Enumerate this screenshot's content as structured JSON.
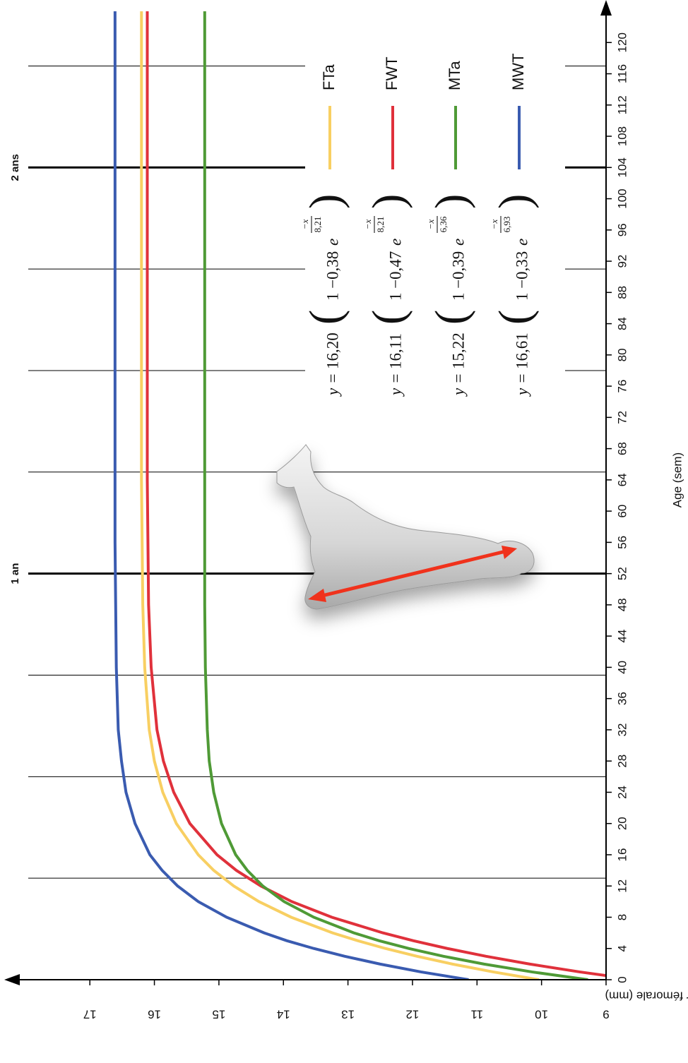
{
  "chart_data": {
    "type": "line",
    "x_label": "Age (sem)",
    "y_label": "Longueur fémorale (mm)",
    "x": [
      0,
      1,
      2,
      3,
      4,
      5,
      6,
      8,
      10,
      12,
      14,
      16,
      20,
      24,
      28,
      32,
      40,
      48,
      56,
      64,
      80,
      96,
      124
    ],
    "xlim": [
      0,
      124
    ],
    "xticks": [
      0,
      4,
      8,
      12,
      16,
      20,
      24,
      28,
      32,
      36,
      40,
      44,
      48,
      52,
      56,
      60,
      64,
      68,
      72,
      76,
      80,
      84,
      88,
      92,
      96,
      100,
      104,
      108,
      112,
      116,
      120
    ],
    "ylim": [
      9,
      17.9
    ],
    "yticks": [
      9,
      10,
      11,
      12,
      13,
      14,
      15,
      16,
      17
    ],
    "grid": false,
    "equation_symbols": {
      "lhs": "y =",
      "one": "1 −",
      "base": "e",
      "exp_num": "−x"
    },
    "series": [
      {
        "name": "FTa",
        "color": "#f8cf62",
        "equation": {
          "a": "16,20",
          "b": "0,38",
          "c": "8,21"
        },
        "values": [
          10.04,
          10.75,
          11.38,
          11.93,
          12.42,
          12.85,
          13.24,
          13.88,
          14.38,
          14.77,
          15.08,
          15.32,
          15.66,
          15.87,
          16.0,
          16.08,
          16.15,
          16.18,
          16.19,
          16.2,
          16.2,
          16.2,
          16.2
        ]
      },
      {
        "name": "FWT",
        "color": "#e0313b",
        "equation": {
          "a": "16,11",
          "b": "0,47",
          "c": "8,21"
        },
        "values": [
          8.54,
          9.41,
          10.18,
          10.86,
          11.46,
          11.99,
          12.46,
          13.25,
          13.87,
          14.35,
          14.73,
          15.03,
          15.45,
          15.7,
          15.86,
          15.96,
          16.05,
          16.09,
          16.1,
          16.11,
          16.11,
          16.11,
          16.11
        ]
      },
      {
        "name": "MTa",
        "color": "#4f9a36",
        "equation": {
          "a": "15,22",
          "b": "0,39",
          "c": "6,36"
        },
        "values": [
          9.28,
          10.15,
          10.89,
          11.52,
          12.06,
          12.52,
          12.91,
          13.53,
          13.99,
          14.32,
          14.56,
          14.74,
          14.96,
          15.08,
          15.15,
          15.18,
          15.21,
          15.22,
          15.22,
          15.22,
          15.22,
          15.22,
          15.22
        ]
      },
      {
        "name": "MWT",
        "color": "#3a5bb0",
        "equation": {
          "a": "16,61",
          "b": "0,33",
          "c": "6,93"
        },
        "values": [
          11.13,
          11.87,
          12.5,
          13.05,
          13.53,
          13.95,
          14.3,
          14.88,
          15.32,
          15.64,
          15.88,
          16.07,
          16.3,
          16.44,
          16.51,
          16.56,
          16.59,
          16.6,
          16.61,
          16.61,
          16.61,
          16.61,
          16.61
        ]
      }
    ],
    "reference_lines": [
      {
        "x": 52,
        "label": "1 an"
      },
      {
        "x": 104,
        "label": "2 ans"
      }
    ],
    "quarter_lines": [
      13,
      26,
      39,
      65,
      78,
      91,
      117
    ]
  }
}
